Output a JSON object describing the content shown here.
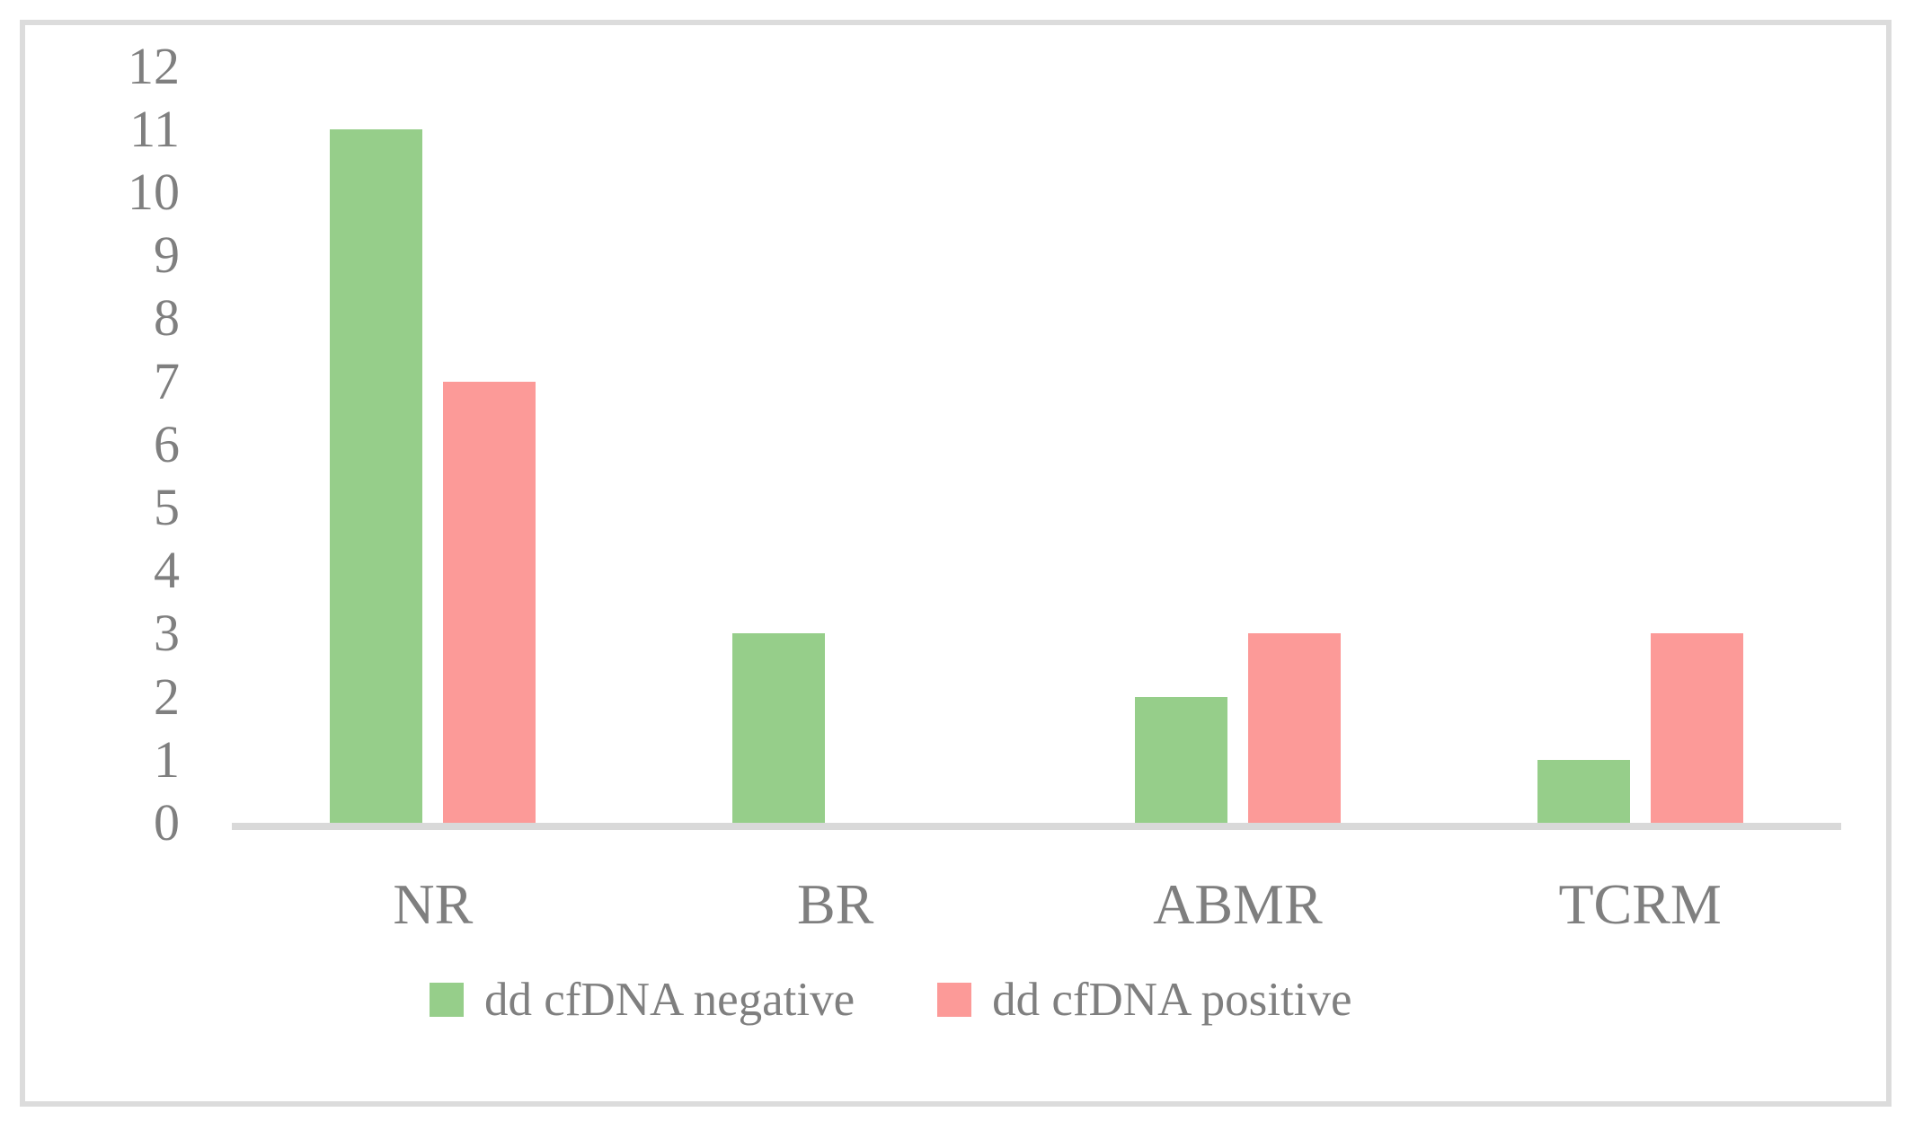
{
  "figure": {
    "background_color": "#ffffff",
    "frame_border_color": "#dcdcdc",
    "axis_line_color": "#d9d9d9",
    "text_color": "#7f7f7f"
  },
  "chart_data": {
    "type": "bar",
    "title": "",
    "xlabel": "",
    "ylabel": "",
    "categories": [
      "NR",
      "BR",
      "ABMR",
      "TCRM"
    ],
    "series": [
      {
        "name": "dd cfDNA negative",
        "color": "#96ce8a",
        "values": [
          11,
          3,
          2,
          1
        ]
      },
      {
        "name": "dd cfDNA positive",
        "color": "#fc9a98",
        "values": [
          7,
          0,
          3,
          3
        ]
      }
    ],
    "ylim": [
      0,
      12
    ],
    "ytick_step": 1,
    "ytick_labels": [
      "0",
      "1",
      "2",
      "3",
      "4",
      "5",
      "6",
      "7",
      "8",
      "9",
      "10",
      "11",
      "12"
    ],
    "grid": false,
    "legend_position": "bottom"
  }
}
